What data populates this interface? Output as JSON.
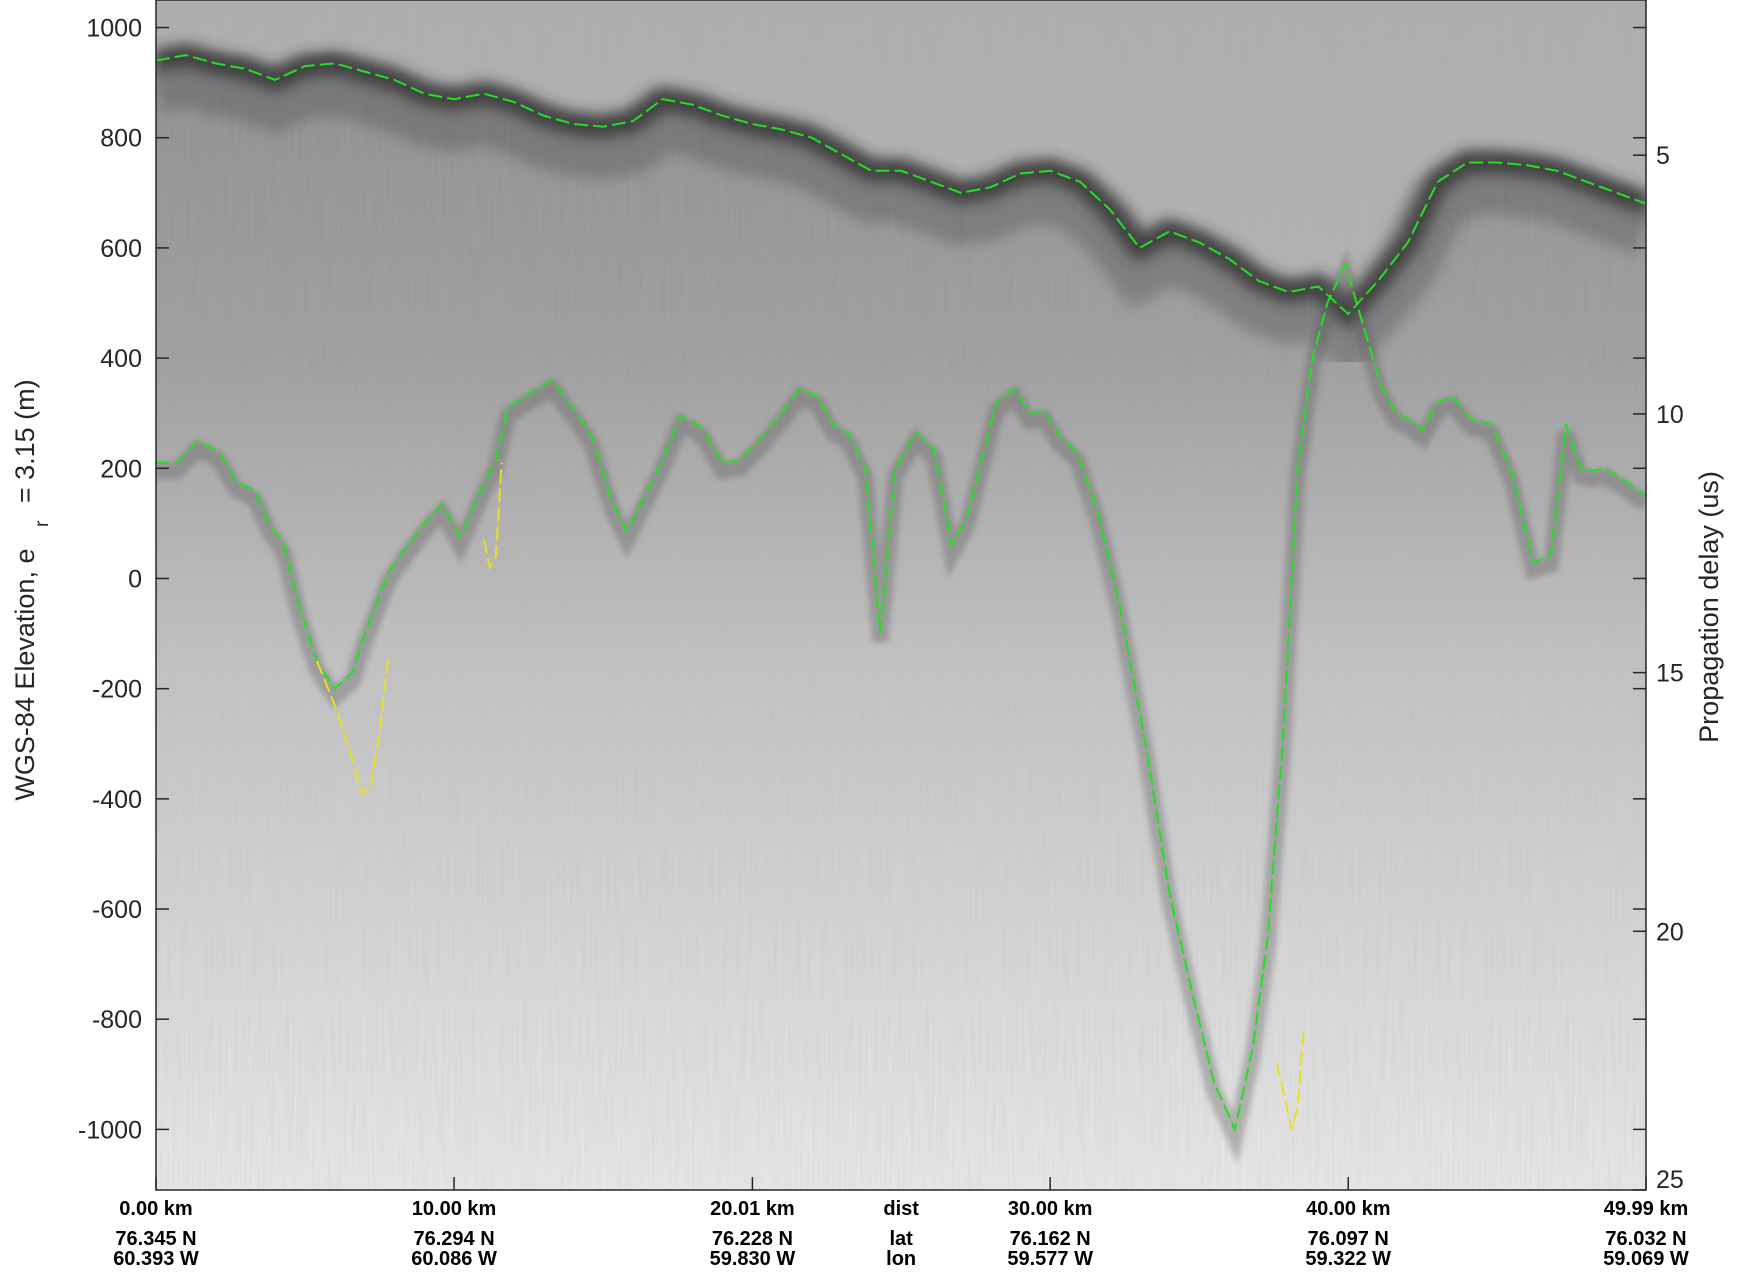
{
  "chart_data": {
    "type": "radargram",
    "ylabel": "WGS-84 Elevation, e",
    "ylabel_sub": "r",
    "ylabel_suffix": "= 3.15 (m)",
    "ylabel_right": "Propagation delay (us)",
    "ylim": [
      -1110,
      1050
    ],
    "y_ticks": [
      1000,
      800,
      600,
      400,
      200,
      0,
      -200,
      -400,
      -600,
      -800,
      -1000
    ],
    "right_ylim": [
      2,
      25
    ],
    "right_ticks": [
      5,
      10,
      15,
      20,
      25
    ],
    "xlim_km": [
      0,
      49.99
    ],
    "grid": false,
    "bottom_axis": {
      "row_labels": [
        "dist",
        "lat",
        "lon"
      ],
      "row_labels_km": 25.0,
      "columns": [
        {
          "km": 0.0,
          "dist": "0.00 km",
          "lat": "76.345 N",
          "lon": "60.393 W"
        },
        {
          "km": 10.0,
          "dist": "10.00 km",
          "lat": "76.294 N",
          "lon": "60.086 W"
        },
        {
          "km": 20.01,
          "dist": "20.01 km",
          "lat": "76.228 N",
          "lon": "59.830 W"
        },
        {
          "km": 30.0,
          "dist": "30.00 km",
          "lat": "76.162 N",
          "lon": "59.577 W"
        },
        {
          "km": 40.0,
          "dist": "40.00 km",
          "lat": "76.097 N",
          "lon": "59.322 W"
        },
        {
          "km": 49.99,
          "dist": "49.99 km",
          "lat": "76.032 N",
          "lon": "59.069 W"
        }
      ]
    },
    "series": [
      {
        "style": "surface-pick",
        "color": "#22e022",
        "x": [
          0,
          1,
          2,
          3,
          4,
          5,
          6,
          7,
          8,
          9,
          10,
          11,
          12,
          13,
          14,
          15,
          16,
          17,
          18,
          19,
          20,
          21,
          22,
          23,
          24,
          25,
          26,
          27,
          28,
          29,
          30,
          31,
          32,
          33,
          34,
          35,
          36,
          37,
          38,
          39,
          40,
          41,
          42,
          43,
          44,
          45,
          46,
          47,
          48,
          49,
          49.99
        ],
        "y": [
          940,
          950,
          935,
          925,
          905,
          930,
          935,
          920,
          905,
          880,
          870,
          880,
          865,
          840,
          825,
          820,
          830,
          870,
          860,
          840,
          825,
          815,
          800,
          770,
          740,
          740,
          720,
          700,
          710,
          735,
          740,
          720,
          670,
          600,
          630,
          610,
          580,
          540,
          520,
          530,
          480,
          540,
          610,
          720,
          755,
          755,
          750,
          740,
          720,
          700,
          680
        ]
      },
      {
        "style": "bed-pick",
        "color": "#22e022",
        "x": [
          0,
          0.7,
          1.4,
          2.1,
          2.7,
          3.3,
          3.8,
          4.3,
          4.8,
          5.4,
          6.0,
          6.6,
          7.0,
          7.8,
          8.3,
          9.0,
          9.6,
          10.2,
          10.9,
          11.4,
          11.8,
          12.5,
          13.3,
          14.1,
          14.6,
          15.3,
          15.8,
          16.4,
          17.0,
          17.6,
          18.3,
          19.0,
          19.6,
          20.3,
          21.0,
          21.6,
          22.2,
          22.7,
          23.2,
          23.8,
          24.3,
          24.8,
          25.5,
          26.1,
          26.7,
          27.2,
          27.7,
          28.2,
          28.8,
          29.3,
          29.8,
          30.3,
          30.9,
          31.6,
          32.3,
          33.2,
          34.0,
          34.8,
          35.5,
          36.2,
          36.8,
          37.3,
          37.8,
          38.3,
          38.8,
          39.3,
          39.9,
          40.5,
          41.1,
          41.6,
          42.0,
          42.5,
          43.0,
          43.5,
          44.1,
          44.8,
          45.5,
          46.2,
          46.8,
          47.3,
          47.8,
          48.2,
          48.6,
          49.2,
          49.99
        ],
        "y": [
          210,
          210,
          250,
          230,
          175,
          160,
          100,
          60,
          -50,
          -150,
          -200,
          -170,
          -100,
          10,
          50,
          100,
          135,
          75,
          160,
          215,
          310,
          335,
          360,
          300,
          260,
          140,
          85,
          150,
          215,
          295,
          275,
          210,
          215,
          255,
          300,
          345,
          330,
          280,
          265,
          200,
          -100,
          200,
          265,
          235,
          60,
          110,
          215,
          320,
          345,
          300,
          305,
          260,
          230,
          120,
          -40,
          -300,
          -570,
          -760,
          -915,
          -1000,
          -850,
          -650,
          -300,
          200,
          400,
          500,
          570,
          460,
          350,
          300,
          290,
          270,
          320,
          330,
          290,
          280,
          190,
          30,
          40,
          280,
          200,
          195,
          200,
          180,
          150
        ]
      },
      {
        "style": "interpolated-pick",
        "color": "#e8e020",
        "segments": [
          {
            "x": [
              5.4,
              6.0,
              6.6,
              6.9,
              7.2,
              7.5,
              7.8
            ],
            "y": [
              -150,
              -230,
              -330,
              -390,
              -380,
              -280,
              -140
            ]
          },
          {
            "x": [
              11.0,
              11.2,
              11.4,
              11.6
            ],
            "y": [
              70,
              20,
              40,
              210
            ]
          },
          {
            "x": [
              37.6,
              37.9,
              38.1,
              38.3,
              38.5
            ],
            "y": [
              -880,
              -950,
              -1000,
              -960,
              -820
            ]
          }
        ]
      }
    ]
  }
}
